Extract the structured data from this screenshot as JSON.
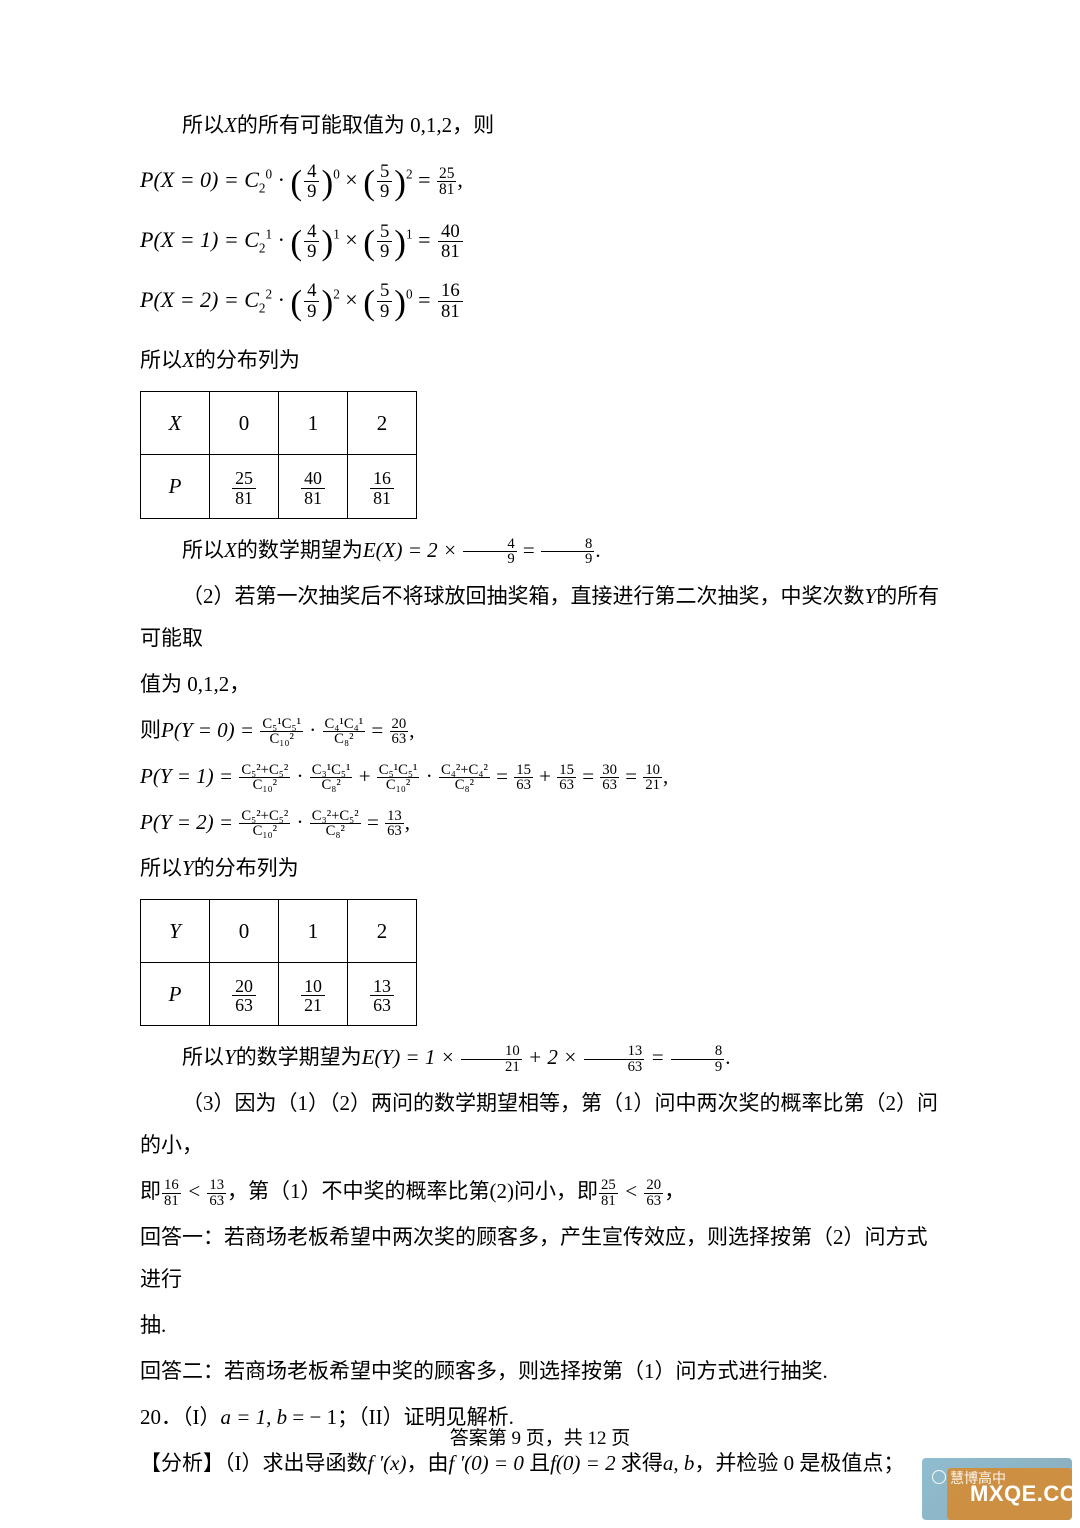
{
  "colors": {
    "text": "#000000",
    "bg": "#ffffff",
    "tableBorder": "#000000",
    "wmBlueA": "#3486a8",
    "wmBlueB": "#2a6b87",
    "wmOrange": "#d88a2b",
    "wmText": "#ffffff"
  },
  "fonts": {
    "body": "SimSun",
    "math": "Times New Roman",
    "bodySize": 21,
    "formulaSize": 22,
    "footerSize": 19
  },
  "layout": {
    "pageW": 1080,
    "pageH": 1528,
    "padTop": 100,
    "padLR": 140,
    "padBottom": 60
  },
  "lines": {
    "l1a": "所以",
    "l1b": "的所有可能取值为 0,1,2，则",
    "xVar": "X",
    "pxLine": "所以",
    "pxLine2": "的分布列为",
    "exLead": "所以",
    "exMid": "的数学期望为",
    "exMid2": "E(X) = 2 × ",
    "exEnd": ".",
    "l2": "（2）若第一次抽奖后不将球放回抽奖箱，直接进行第二次抽奖，中奖次数",
    "yVar": "Y",
    "l2b": "的所有可能取",
    "l2c": "值为 0,1,2，",
    "pyLine": "所以",
    "pyLine2": "的分布列为",
    "eyLead": "所以",
    "eyMid": "的数学期望为",
    "eyMid2": "E(Y) = 1 × ",
    "eyPlus": " + 2 × ",
    "eyEq": " = ",
    "eyEnd": ".",
    "l3": "（3）因为（1）（2）两问的数学期望相等，第（1）问中两次奖的概率比第（2）问的小，",
    "l4a": "即",
    "l4b": "，第（1）不中奖的概率比第(2)问小，即",
    "l4c": "，",
    "l5": "回答一：若商场老板希望中两次奖的顾客多，产生宣传效应，则选择按第（2）问方式进行",
    "l5b": "抽.",
    "l6": "回答二：若商场老板希望中奖的顾客多，则选择按第（1）问方式进行抽奖.",
    "l7a": "20．（I）",
    "l7ital1": "a",
    "l7mid1": " = 1, ",
    "l7ital2": "b",
    "l7mid2": " = − 1；（II）证明见解析.",
    "l8a": "【分析】（I）求出导函数",
    "l8b": "f ′(x)",
    "l8c": "，由",
    "l8d": "f ′(0) = 0",
    "l8e": " 且",
    "l8f": "f(0) = 2",
    "l8g": " 求得",
    "l8h": "a, b",
    "l8i": "，并检验 0 是极值点；",
    "zeLabel": "则"
  },
  "formulas": {
    "px0": {
      "label": "P(X = 0) = C",
      "c_n": "2",
      "c_up": "0",
      "mid": " · ",
      "b1n": "4",
      "b1d": "9",
      "e1": "0",
      "b2n": "5",
      "b2d": "9",
      "e2": "2",
      "rn": "25",
      "rd": "81",
      "tail": ","
    },
    "px1": {
      "label": "P(X = 1) = C",
      "c_n": "2",
      "c_up": "1",
      "mid": " · ",
      "b1n": "4",
      "b1d": "9",
      "e1": "1",
      "b2n": "5",
      "b2d": "9",
      "e2": "1",
      "rn": "40",
      "rd": "81",
      "tail": ""
    },
    "px2": {
      "label": "P(X = 2) = C",
      "c_n": "2",
      "c_up": "2",
      "mid": " · ",
      "b1n": "4",
      "b1d": "9",
      "e1": "2",
      "b2n": "5",
      "b2d": "9",
      "e2": "0",
      "rn": "16",
      "rd": "81",
      "tail": ""
    },
    "exFr1": {
      "n": "4",
      "d": "9"
    },
    "exFr2": {
      "n": "8",
      "d": "9"
    },
    "py0": {
      "lead": "P(Y = 0) = ",
      "t1n": "C₅¹C₅¹",
      "t1d": "C₁₀²",
      "t2n": "C₄¹C₄¹",
      "t2d": "C₈²",
      "rn": "20",
      "rd": "63",
      "tail": ","
    },
    "py1": {
      "lead": "P(Y = 1) = ",
      "a1n": "C₅²+C₅²",
      "a1d": "C₁₀²",
      "a2n": "C₃¹C₅¹",
      "a2d": "C₈²",
      "b1n": "C₅¹C₅¹",
      "b1d": "C₁₀²",
      "b2n": "C₄²+C₄²",
      "b2d": "C₈²",
      "s1n": "15",
      "s1d": "63",
      "s2n": "15",
      "s2d": "63",
      "s3n": "30",
      "s3d": "63",
      "rn": "10",
      "rd": "21",
      "tail": ","
    },
    "py2": {
      "lead": "P(Y = 2) = ",
      "a1n": "C₅²+C₅²",
      "a1d": "C₁₀²",
      "a2n": "C₃²+C₅²",
      "a2d": "C₈²",
      "rn": "13",
      "rd": "63",
      "tail": ","
    },
    "eyFr1": {
      "n": "10",
      "d": "21"
    },
    "eyFr2": {
      "n": "13",
      "d": "63"
    },
    "eyFr3": {
      "n": "8",
      "d": "9"
    },
    "cmp1a": {
      "n": "16",
      "d": "81"
    },
    "cmp1b": {
      "n": "13",
      "d": "63"
    },
    "cmp2a": {
      "n": "25",
      "d": "81"
    },
    "cmp2b": {
      "n": "20",
      "d": "63"
    },
    "lt": " < "
  },
  "tableX": {
    "head": [
      "X",
      "0",
      "1",
      "2"
    ],
    "rowLabel": "P",
    "probs": [
      {
        "n": "25",
        "d": "81"
      },
      {
        "n": "40",
        "d": "81"
      },
      {
        "n": "16",
        "d": "81"
      }
    ]
  },
  "tableY": {
    "head": [
      "Y",
      "0",
      "1",
      "2"
    ],
    "rowLabel": "P",
    "probs": [
      {
        "n": "20",
        "d": "63"
      },
      {
        "n": "10",
        "d": "21"
      },
      {
        "n": "13",
        "d": "63"
      }
    ]
  },
  "footer": "答案第 9 页，共 12 页",
  "watermark": {
    "line1": "慧博高中",
    "line2": "MXQE.COM"
  }
}
